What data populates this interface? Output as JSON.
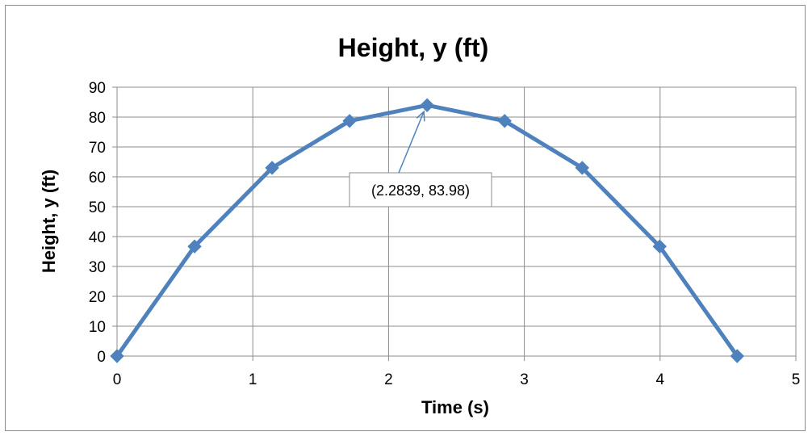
{
  "chart_data": {
    "type": "line",
    "title": "Height, y (ft)",
    "xlabel": "Time (s)",
    "ylabel": "Height, y (ft)",
    "xlim": [
      0,
      5
    ],
    "ylim": [
      0,
      90
    ],
    "x_ticks": [
      "0",
      "1",
      "2",
      "3",
      "4",
      "5"
    ],
    "y_ticks": [
      "0",
      "10",
      "20",
      "30",
      "40",
      "50",
      "60",
      "70",
      "80",
      "90"
    ],
    "grid": true,
    "legend": "none",
    "series": [
      {
        "marker": "diamond",
        "color": "#4f81bd",
        "points": [
          {
            "x": 0,
            "y": 0
          },
          {
            "x": 0.571,
            "y": 36.7
          },
          {
            "x": 1.142,
            "y": 63.0
          },
          {
            "x": 1.713,
            "y": 78.7
          },
          {
            "x": 2.2839,
            "y": 83.98
          },
          {
            "x": 2.855,
            "y": 78.7
          },
          {
            "x": 3.426,
            "y": 63.0
          },
          {
            "x": 3.997,
            "y": 36.7
          },
          {
            "x": 4.568,
            "y": 0
          }
        ]
      }
    ],
    "annotation": {
      "text": "(2.2839, 83.98)",
      "target": {
        "x": 2.2839,
        "y": 83.98
      }
    }
  }
}
